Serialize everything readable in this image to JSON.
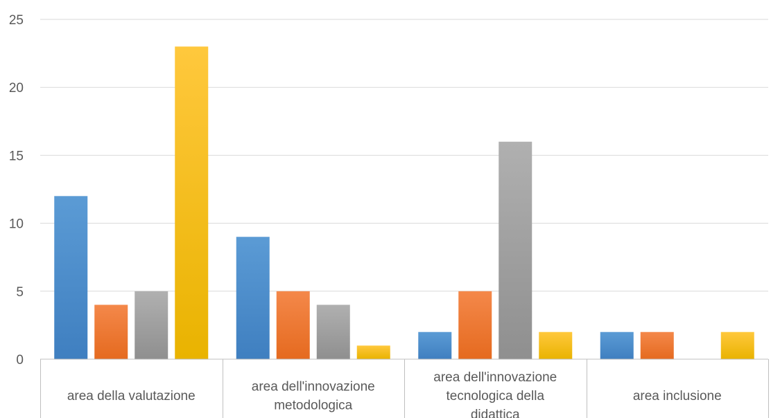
{
  "chart_data": {
    "type": "bar",
    "categories": [
      [
        "area della valutazione"
      ],
      [
        "area dell'innovazione",
        "metodologica"
      ],
      [
        "area dell'innovazione",
        "tecnologica della",
        "didattica"
      ],
      [
        "area inclusione"
      ]
    ],
    "series": [
      {
        "values": [
          12,
          9,
          2,
          2
        ],
        "color": "#5b9bd5",
        "color_dark": "#3f7fc0"
      },
      {
        "values": [
          4,
          5,
          5,
          2
        ],
        "color": "#f4884a",
        "color_dark": "#e56a1f"
      },
      {
        "values": [
          5,
          4,
          16,
          0
        ],
        "color": "#b0b0b0",
        "color_dark": "#8f8f8f"
      },
      {
        "values": [
          23,
          1,
          2,
          2
        ],
        "color": "#ffc83d",
        "color_dark": "#e9b300"
      }
    ],
    "ylim": [
      0,
      25
    ],
    "yticks": [
      0,
      5,
      10,
      15,
      20,
      25
    ],
    "grid": true,
    "legend": "none",
    "title": "",
    "xlabel": "",
    "ylabel": ""
  }
}
